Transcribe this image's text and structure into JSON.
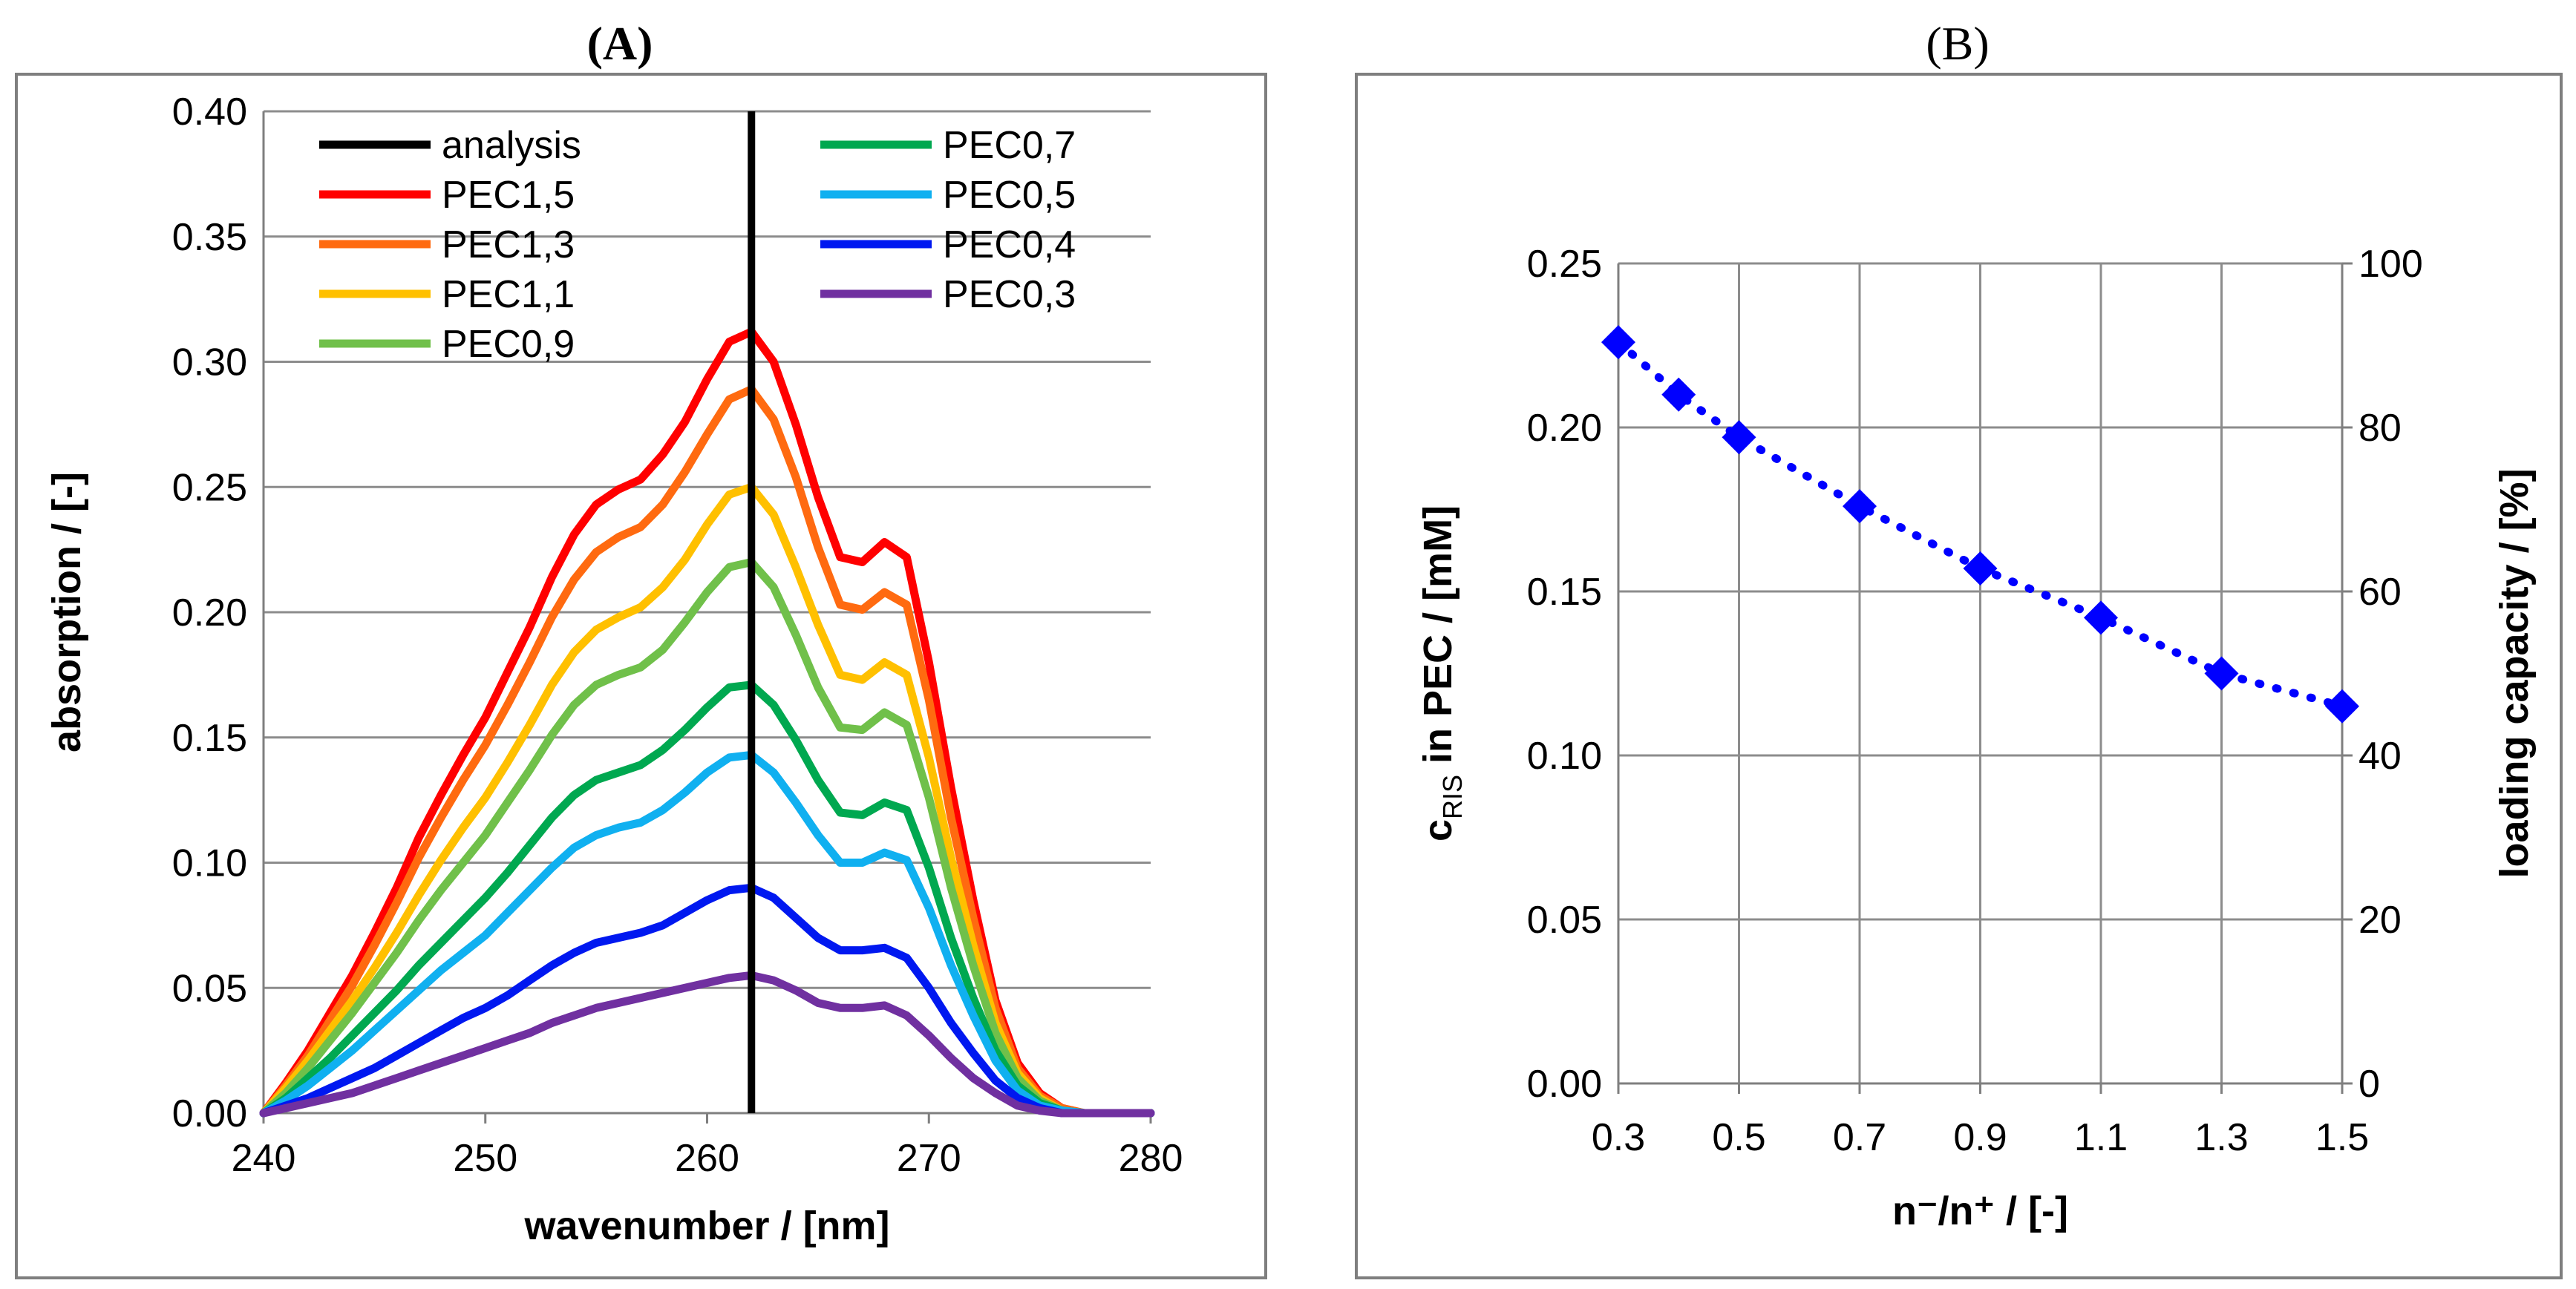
{
  "figure": {
    "panels": [
      {
        "label": "(A)"
      },
      {
        "label": "(B)"
      }
    ]
  },
  "chart_data": [
    {
      "type": "line",
      "title": "(A)",
      "xlabel": "wavenumber / [nm]",
      "ylabel": "absorption / [-]",
      "xlim": [
        240,
        280
      ],
      "ylim": [
        0,
        0.4
      ],
      "xticks": [
        "240",
        "250",
        "260",
        "270",
        "280"
      ],
      "yticks": [
        "0.00",
        "0.05",
        "0.10",
        "0.15",
        "0.20",
        "0.25",
        "0.30",
        "0.35",
        "0.40"
      ],
      "grid": "horizontal",
      "legend": "top-left, two columns",
      "vertical_line": {
        "name": "analysis",
        "x": 262,
        "color": "#000000"
      },
      "wavelengths": [
        240,
        241,
        242,
        243,
        244,
        245,
        246,
        247,
        248,
        249,
        250,
        251,
        252,
        253,
        254,
        255,
        256,
        257,
        258,
        259,
        260,
        261,
        262,
        263,
        264,
        265,
        266,
        267,
        268,
        269,
        270,
        271,
        272,
        273,
        274,
        275,
        276,
        277,
        278,
        279,
        280
      ],
      "series": [
        {
          "name": "PEC1,5",
          "color": "#ff0000",
          "values": [
            0.0,
            0.012,
            0.025,
            0.04,
            0.055,
            0.072,
            0.09,
            0.11,
            0.127,
            0.143,
            0.158,
            0.176,
            0.194,
            0.214,
            0.231,
            0.243,
            0.249,
            0.253,
            0.263,
            0.276,
            0.293,
            0.308,
            0.312,
            0.3,
            0.275,
            0.246,
            0.222,
            0.22,
            0.228,
            0.222,
            0.18,
            0.13,
            0.085,
            0.045,
            0.02,
            0.008,
            0.002,
            0.0,
            0.0,
            0.0,
            0.0
          ]
        },
        {
          "name": "PEC1,3",
          "color": "#ff6a10",
          "values": [
            0.0,
            0.011,
            0.023,
            0.037,
            0.051,
            0.067,
            0.084,
            0.102,
            0.118,
            0.133,
            0.147,
            0.163,
            0.18,
            0.198,
            0.213,
            0.224,
            0.23,
            0.234,
            0.243,
            0.256,
            0.271,
            0.285,
            0.289,
            0.277,
            0.254,
            0.226,
            0.203,
            0.201,
            0.208,
            0.203,
            0.165,
            0.118,
            0.078,
            0.042,
            0.018,
            0.007,
            0.002,
            0.0,
            0.0,
            0.0,
            0.0
          ]
        },
        {
          "name": "PEC1,1",
          "color": "#ffc000",
          "values": [
            0.0,
            0.01,
            0.021,
            0.033,
            0.045,
            0.058,
            0.072,
            0.087,
            0.101,
            0.114,
            0.126,
            0.14,
            0.155,
            0.171,
            0.184,
            0.193,
            0.198,
            0.202,
            0.21,
            0.221,
            0.235,
            0.247,
            0.25,
            0.239,
            0.218,
            0.195,
            0.175,
            0.173,
            0.18,
            0.175,
            0.142,
            0.102,
            0.067,
            0.036,
            0.016,
            0.006,
            0.001,
            0.0,
            0.0,
            0.0,
            0.0
          ]
        },
        {
          "name": "PEC0,9",
          "color": "#70c04a",
          "values": [
            0.0,
            0.008,
            0.018,
            0.029,
            0.04,
            0.052,
            0.064,
            0.077,
            0.089,
            0.1,
            0.111,
            0.124,
            0.137,
            0.151,
            0.163,
            0.171,
            0.175,
            0.178,
            0.185,
            0.196,
            0.208,
            0.218,
            0.22,
            0.21,
            0.191,
            0.17,
            0.154,
            0.153,
            0.16,
            0.155,
            0.126,
            0.09,
            0.059,
            0.032,
            0.014,
            0.005,
            0.001,
            0.0,
            0.0,
            0.0,
            0.0
          ]
        },
        {
          "name": "PEC0,7",
          "color": "#00a850",
          "values": [
            0.0,
            0.006,
            0.014,
            0.022,
            0.031,
            0.04,
            0.049,
            0.059,
            0.068,
            0.077,
            0.086,
            0.096,
            0.107,
            0.118,
            0.127,
            0.133,
            0.136,
            0.139,
            0.145,
            0.153,
            0.162,
            0.17,
            0.171,
            0.163,
            0.149,
            0.133,
            0.12,
            0.119,
            0.124,
            0.121,
            0.098,
            0.07,
            0.046,
            0.025,
            0.011,
            0.004,
            0.001,
            0.0,
            0.0,
            0.0,
            0.0
          ]
        },
        {
          "name": "PEC0,5",
          "color": "#10b0f0",
          "values": [
            0.0,
            0.005,
            0.011,
            0.018,
            0.025,
            0.033,
            0.041,
            0.049,
            0.057,
            0.064,
            0.071,
            0.08,
            0.089,
            0.098,
            0.106,
            0.111,
            0.114,
            0.116,
            0.121,
            0.128,
            0.136,
            0.142,
            0.143,
            0.136,
            0.124,
            0.111,
            0.1,
            0.1,
            0.104,
            0.101,
            0.082,
            0.059,
            0.039,
            0.021,
            0.009,
            0.003,
            0.001,
            0.0,
            0.0,
            0.0,
            0.0
          ]
        },
        {
          "name": "PEC0,4",
          "color": "#0018f0",
          "values": [
            0.0,
            0.003,
            0.006,
            0.01,
            0.014,
            0.018,
            0.023,
            0.028,
            0.033,
            0.038,
            0.042,
            0.047,
            0.053,
            0.059,
            0.064,
            0.068,
            0.07,
            0.072,
            0.075,
            0.08,
            0.085,
            0.089,
            0.09,
            0.086,
            0.078,
            0.07,
            0.065,
            0.065,
            0.066,
            0.062,
            0.05,
            0.036,
            0.024,
            0.013,
            0.006,
            0.002,
            0.0,
            0.0,
            0.0,
            0.0,
            0.0
          ]
        },
        {
          "name": "PEC0,3",
          "color": "#7030a0",
          "values": [
            0.0,
            0.002,
            0.004,
            0.006,
            0.008,
            0.011,
            0.014,
            0.017,
            0.02,
            0.023,
            0.026,
            0.029,
            0.032,
            0.036,
            0.039,
            0.042,
            0.044,
            0.046,
            0.048,
            0.05,
            0.052,
            0.054,
            0.055,
            0.053,
            0.049,
            0.044,
            0.042,
            0.042,
            0.043,
            0.039,
            0.031,
            0.022,
            0.014,
            0.008,
            0.003,
            0.001,
            0.0,
            0.0,
            0.0,
            0.0,
            0.0
          ]
        }
      ],
      "legend_entries": [
        "analysis",
        "PEC1,5",
        "PEC1,3",
        "PEC1,1",
        "PEC0,9",
        "PEC0,7",
        "PEC0,5",
        "PEC0,4",
        "PEC0,3"
      ]
    },
    {
      "type": "scatter",
      "title": "(B)",
      "xlabel": "n⁻/n⁺ / [-]",
      "ylabel": "c_RIS in PEC / [mM]",
      "ylabel_parts": {
        "c": "c",
        "sub": "RIS",
        "rest": " in PEC / [mM]"
      },
      "y2label": "loading capacity / [%]",
      "xlim": [
        0.3,
        1.5
      ],
      "ylim": [
        0,
        0.25
      ],
      "y2lim": [
        0,
        100
      ],
      "xticks": [
        "0.3",
        "0.5",
        "0.7",
        "0.9",
        "1.1",
        "1.3",
        "1.5"
      ],
      "xtick_values": [
        0.3,
        0.5,
        0.7,
        0.9,
        1.1,
        1.3,
        1.5
      ],
      "yticks": [
        "0.00",
        "0.05",
        "0.10",
        "0.15",
        "0.20",
        "0.25"
      ],
      "y2ticks": [
        "0",
        "20",
        "40",
        "60",
        "80",
        "100"
      ],
      "grid": "horizontal and vertical",
      "marker": "diamond",
      "color": "#0000ff",
      "trendline": "dotted",
      "series": [
        {
          "name": "c_RIS",
          "x": [
            0.3,
            0.4,
            0.5,
            0.7,
            0.9,
            1.1,
            1.3,
            1.5
          ],
          "values": [
            0.226,
            0.21,
            0.197,
            0.176,
            0.157,
            0.142,
            0.125,
            0.115
          ]
        }
      ]
    }
  ]
}
